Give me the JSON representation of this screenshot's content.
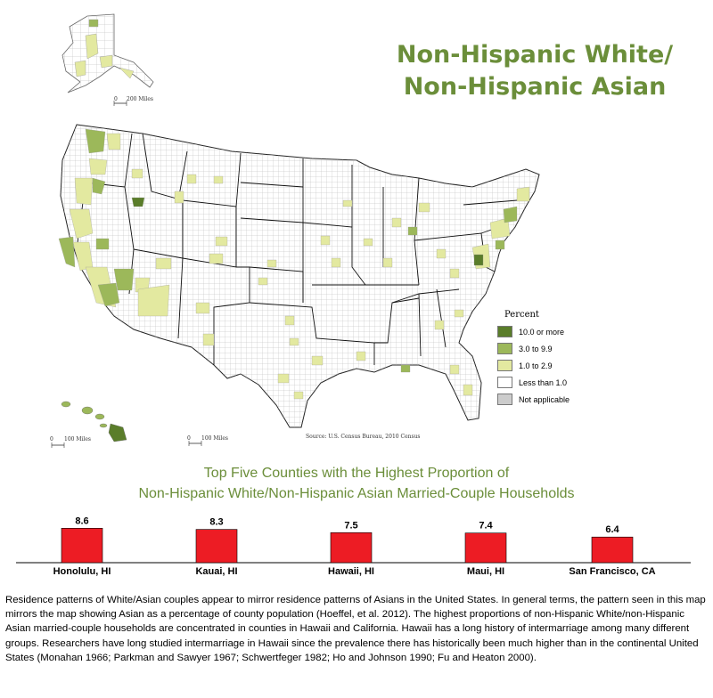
{
  "title": {
    "line1": "Non-Hispanic White/",
    "line2": "Non-Hispanic Asian"
  },
  "map": {
    "legend": {
      "title": "Percent",
      "items": [
        {
          "label": "10.0 or more",
          "color": "#5a7d2a"
        },
        {
          "label": "3.0 to 9.9",
          "color": "#9cb85a"
        },
        {
          "label": "1.0 to 2.9",
          "color": "#e3e9a0"
        },
        {
          "label": "Less than 1.0",
          "color": "#ffffff"
        },
        {
          "label": "Not applicable",
          "color": "#cccccc"
        }
      ]
    },
    "source": "Source: U.S. Census Bureau, 2010 Census",
    "scale_alaska": "200 Miles",
    "scale_hawaii": "100 Miles",
    "scale_prico": "100 Miles",
    "scale_zero": "0"
  },
  "chart": {
    "title_line1": "Top Five Counties with the Highest Proportion of",
    "title_line2": "Non-Hispanic White/Non-Hispanic Asian Married-Couple Households"
  },
  "chart_data": {
    "type": "bar",
    "categories": [
      "Honolulu, HI",
      "Kauai, HI",
      "Hawaii, HI",
      "Maui, HI",
      "San Francisco, CA"
    ],
    "values": [
      8.6,
      8.3,
      7.5,
      7.4,
      6.4
    ],
    "value_labels": [
      "8.6",
      "8.3",
      "7.5",
      "7.4",
      "6.4"
    ],
    "bar_color": "#ed1c24",
    "ylim": [
      0,
      10
    ],
    "grid": false,
    "title": "Top Five Counties with the Highest Proportion of Non-Hispanic White/Non-Hispanic Asian Married-Couple Households"
  },
  "description": "Residence patterns of White/Asian couples appear to mirror residence patterns of Asians in the United States. In general terms, the pattern seen in this map mirrors the map showing Asian as a percentage of county population (Hoeffel, et al. 2012). The highest proportions of non-Hispanic White/non-Hispanic Asian married-couple households are concentrated in counties in Hawaii and California. Hawaii has a long history of intermarriage among many different groups. Researchers have long studied intermarriage in Hawaii since the prevalence there has historically been much higher than in the continental United States (Monahan 1966; Parkman and Sawyer 1967; Schwertfeger 1982; Ho and Johnson 1990; Fu and Heaton 2000)."
}
